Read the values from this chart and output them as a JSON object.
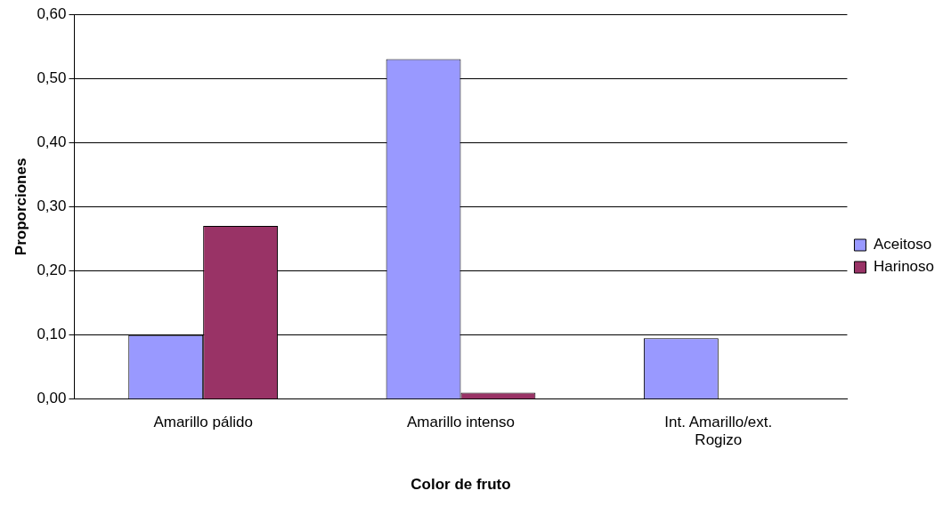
{
  "chart_data": {
    "type": "bar",
    "xlabel": "Color de fruto",
    "ylabel": "Proporciones",
    "categories": [
      "Amarillo pálido",
      "Amarillo intenso",
      "Int. Amarillo/ext. Rogizo"
    ],
    "series": [
      {
        "name": "Aceitoso",
        "color": "#9999ff",
        "values": [
          0.1,
          0.53,
          0.095
        ]
      },
      {
        "name": "Harinoso",
        "color": "#993366",
        "values": [
          0.27,
          0.01,
          0
        ]
      }
    ],
    "ylim": [
      0,
      0.6
    ],
    "yticks": [
      {
        "value": 0,
        "label": "0,00"
      },
      {
        "value": 0.1,
        "label": "0,10"
      },
      {
        "value": 0.2,
        "label": "0,20"
      },
      {
        "value": 0.3,
        "label": "0,30"
      },
      {
        "value": 0.4,
        "label": "0,40"
      },
      {
        "value": 0.5,
        "label": "0,50"
      },
      {
        "value": 0.6,
        "label": "0,60"
      }
    ],
    "grid": "y",
    "legend": "right"
  }
}
